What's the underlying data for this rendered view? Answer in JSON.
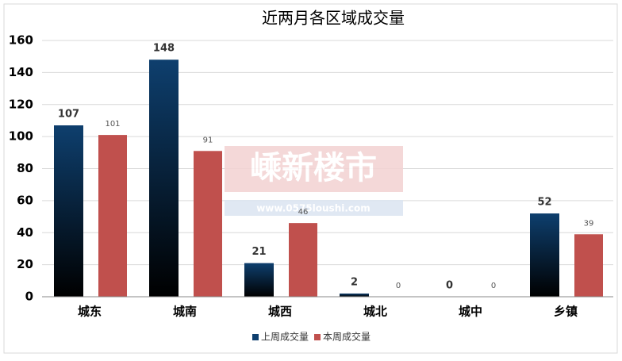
{
  "chart_data": {
    "type": "bar",
    "title": "近两月各区域成交量",
    "categories": [
      "城东",
      "城南",
      "城西",
      "城北",
      "城中",
      "乡镇"
    ],
    "series": [
      {
        "name": "上周成交量",
        "color": "#0e3f6e",
        "values": [
          107,
          148,
          21,
          2,
          0,
          52
        ]
      },
      {
        "name": "本周成交量",
        "color": "#c0504d",
        "values": [
          101,
          91,
          46,
          0,
          0,
          39
        ]
      }
    ],
    "ylim": [
      0,
      160
    ],
    "yticks": [
      0,
      20,
      40,
      60,
      80,
      100,
      120,
      140,
      160
    ],
    "grid": true,
    "legend": "bottom",
    "watermark": {
      "title": "嵊新楼市",
      "url": "www.0575loushi.com"
    }
  }
}
